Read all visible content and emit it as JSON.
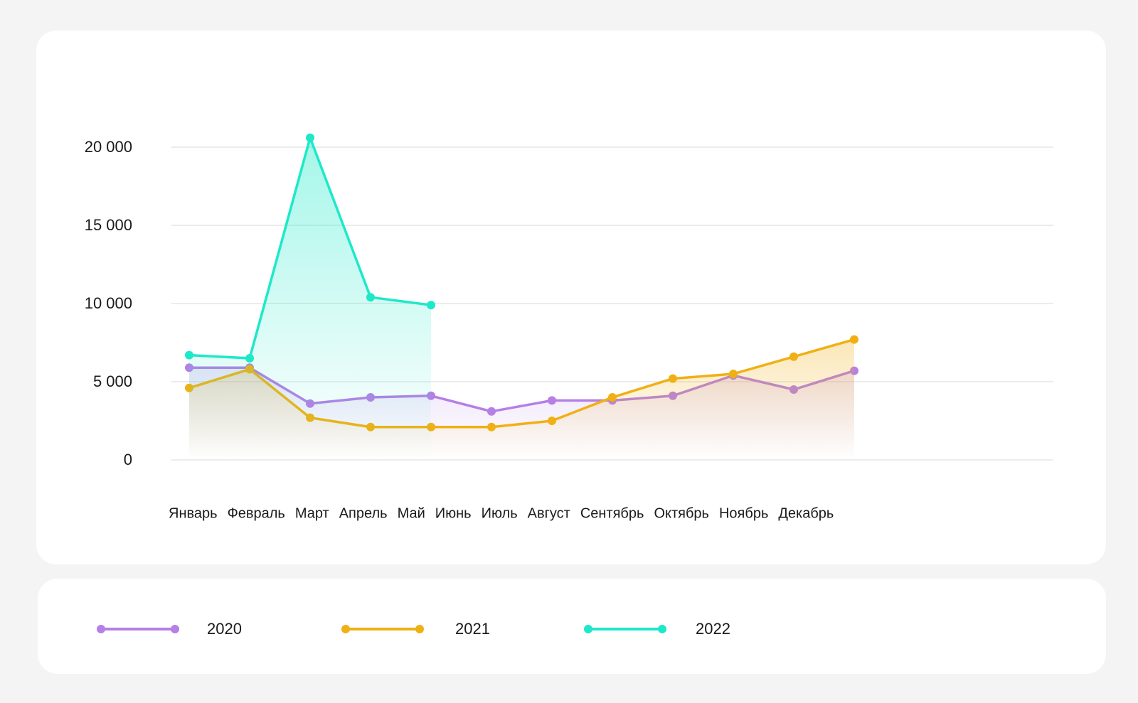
{
  "chart_data": {
    "type": "line",
    "categories": [
      "Январь",
      "Февраль",
      "Март",
      "Апрель",
      "Май",
      "Июнь",
      "Июль",
      "Август",
      "Сентябрь",
      "Октябрь",
      "Ноябрь",
      "Декабрь"
    ],
    "series": [
      {
        "name": "2020",
        "color": "#b57fe6",
        "values": [
          5900,
          5900,
          3600,
          4000,
          4100,
          3100,
          3800,
          3800,
          4100,
          5400,
          4500,
          5700
        ]
      },
      {
        "name": "2021",
        "color": "#f0b014",
        "values": [
          4600,
          5800,
          2700,
          2100,
          2100,
          2100,
          2500,
          4000,
          5200,
          5500,
          6600,
          7700
        ]
      },
      {
        "name": "2022",
        "color": "#1de9c8",
        "values": [
          6700,
          6500,
          20600,
          10400,
          9900,
          null,
          null,
          null,
          null,
          null,
          null,
          null
        ]
      }
    ],
    "ylim": [
      0,
      20000
    ],
    "yticks": [
      {
        "value": 0,
        "label": "0"
      },
      {
        "value": 5000,
        "label": "5 000"
      },
      {
        "value": 10000,
        "label": "10 000"
      },
      {
        "value": 15000,
        "label": "15 000"
      },
      {
        "value": 20000,
        "label": "20 000"
      }
    ],
    "grid": true
  }
}
